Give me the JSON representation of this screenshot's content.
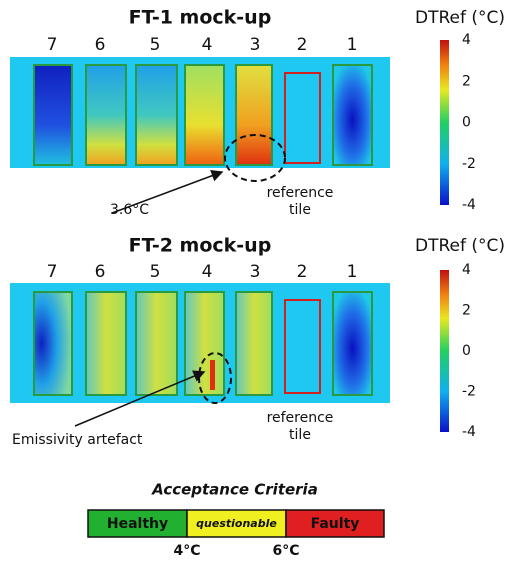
{
  "panels": [
    {
      "title": "FT-1 mock-up",
      "tiles": [
        "7",
        "6",
        "5",
        "4",
        "3",
        "2",
        "1"
      ],
      "colorbar": {
        "label": "DTRef (°C)",
        "ticks": [
          4,
          2,
          0,
          -2,
          -4
        ]
      },
      "annotation": "3.6°C",
      "reference": [
        "reference",
        "tile"
      ]
    },
    {
      "title": "FT-2 mock-up",
      "tiles": [
        "7",
        "6",
        "5",
        "4",
        "3",
        "2",
        "1"
      ],
      "colorbar": {
        "label": "DTRef (°C)",
        "ticks": [
          4,
          2,
          0,
          -2,
          -4
        ]
      },
      "annotation": "Emissivity artefact",
      "reference": [
        "reference",
        "tile"
      ]
    }
  ],
  "criteria": {
    "title": "Acceptance Criteria",
    "levels": [
      "Healthy",
      "questionable",
      "Faulty"
    ],
    "thresholds": [
      "4°C",
      "6°C"
    ]
  }
}
